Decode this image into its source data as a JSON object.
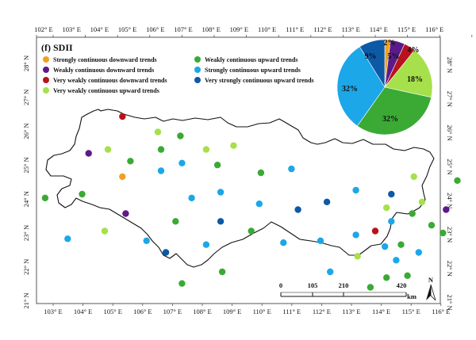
{
  "title": "(f) SDII",
  "top_ticks": [
    "102° E",
    "103° E",
    "104° E",
    "105° E",
    "106° E",
    "107° E",
    "108° E",
    "109° E",
    "110° E",
    "111° E",
    "112° E",
    "113° E",
    "114° E",
    "115° E",
    "116° E"
  ],
  "bottom_ticks": [
    "103° E",
    "104° E",
    "105° E",
    "106° E",
    "107° E",
    "108° E",
    "109° E",
    "110° E",
    "111° E",
    "112° E",
    "113° E",
    "114° E",
    "115° E",
    "116° E"
  ],
  "left_ticks": [
    "28° N",
    "27° N",
    "26° N",
    "25° N",
    "24° N",
    "23° N",
    "22° N",
    "21° N"
  ],
  "right_ticks": [
    "28° N",
    "27° N",
    "26° N",
    "25° N",
    "24° N",
    "23° N",
    "22° N",
    "21° N"
  ],
  "legend": [
    {
      "label": "Strongly continuous downward trends",
      "color": "#f0a020"
    },
    {
      "label": "Weakly continuous downward trends",
      "color": "#5b1a8c"
    },
    {
      "label": "Very weakly continuous downward trends",
      "color": "#b8121c"
    },
    {
      "label": "Very weakly continuous upward trends",
      "color": "#a6e04a"
    },
    {
      "label": "Weakly continuous upward trends",
      "color": "#3aaa35"
    },
    {
      "label": "Strongly continuous upward trends",
      "color": "#1ba7e8"
    },
    {
      "label": "Very strongly continuous upward trends",
      "color": "#0c5aa6"
    }
  ],
  "pie": [
    {
      "label": "2%",
      "value": 2,
      "color": "#f0a020"
    },
    {
      "label": "5%",
      "value": 5,
      "color": "#5b1a8c"
    },
    {
      "label": "4%",
      "value": 4,
      "color": "#b8121c"
    },
    {
      "label": "18%",
      "value": 18,
      "color": "#a6e04a"
    },
    {
      "label": "32%",
      "value": 32,
      "color": "#3aaa35"
    },
    {
      "label": "32%",
      "value": 32,
      "color": "#1ba7e8"
    },
    {
      "label": "9%",
      "value": 9,
      "color": "#0c5aa6"
    }
  ],
  "scale_bar": {
    "ticks": [
      "0",
      "105",
      "210",
      "420"
    ],
    "unit": "km"
  },
  "north_label": "N",
  "stations": [
    {
      "lon": 102.75,
      "lat": 24.35,
      "cat": 4
    },
    {
      "lon": 103.45,
      "lat": 23.3,
      "cat": 5
    },
    {
      "lon": 103.9,
      "lat": 24.45,
      "cat": 4
    },
    {
      "lon": 104.1,
      "lat": 25.5,
      "cat": 1
    },
    {
      "lon": 104.6,
      "lat": 23.5,
      "cat": 3
    },
    {
      "lon": 104.7,
      "lat": 25.6,
      "cat": 3
    },
    {
      "lon": 105.15,
      "lat": 26.45,
      "cat": 2
    },
    {
      "lon": 105.15,
      "lat": 24.9,
      "cat": 0
    },
    {
      "lon": 105.25,
      "lat": 23.95,
      "cat": 1
    },
    {
      "lon": 105.4,
      "lat": 25.3,
      "cat": 4
    },
    {
      "lon": 105.9,
      "lat": 23.25,
      "cat": 5
    },
    {
      "lon": 106.25,
      "lat": 26.05,
      "cat": 3
    },
    {
      "lon": 106.35,
      "lat": 25.6,
      "cat": 4
    },
    {
      "lon": 106.35,
      "lat": 25.05,
      "cat": 5
    },
    {
      "lon": 106.5,
      "lat": 22.95,
      "cat": 6
    },
    {
      "lon": 106.8,
      "lat": 23.75,
      "cat": 4
    },
    {
      "lon": 106.95,
      "lat": 25.95,
      "cat": 4
    },
    {
      "lon": 107.0,
      "lat": 25.25,
      "cat": 5
    },
    {
      "lon": 107.0,
      "lat": 22.15,
      "cat": 4
    },
    {
      "lon": 107.3,
      "lat": 24.35,
      "cat": 5
    },
    {
      "lon": 107.75,
      "lat": 25.6,
      "cat": 3
    },
    {
      "lon": 107.75,
      "lat": 23.15,
      "cat": 5
    },
    {
      "lon": 108.1,
      "lat": 25.2,
      "cat": 4
    },
    {
      "lon": 108.2,
      "lat": 24.5,
      "cat": 5
    },
    {
      "lon": 108.2,
      "lat": 23.75,
      "cat": 6
    },
    {
      "lon": 108.25,
      "lat": 22.45,
      "cat": 4
    },
    {
      "lon": 108.6,
      "lat": 25.7,
      "cat": 3
    },
    {
      "lon": 109.15,
      "lat": 23.5,
      "cat": 4
    },
    {
      "lon": 109.4,
      "lat": 24.2,
      "cat": 5
    },
    {
      "lon": 109.45,
      "lat": 25.0,
      "cat": 4
    },
    {
      "lon": 110.15,
      "lat": 23.2,
      "cat": 5
    },
    {
      "lon": 110.4,
      "lat": 25.1,
      "cat": 5
    },
    {
      "lon": 110.6,
      "lat": 24.05,
      "cat": 6
    },
    {
      "lon": 111.3,
      "lat": 23.25,
      "cat": 5
    },
    {
      "lon": 111.5,
      "lat": 24.25,
      "cat": 6
    },
    {
      "lon": 111.6,
      "lat": 22.45,
      "cat": 5
    },
    {
      "lon": 112.4,
      "lat": 24.55,
      "cat": 5
    },
    {
      "lon": 112.4,
      "lat": 23.4,
      "cat": 5
    },
    {
      "lon": 112.45,
      "lat": 22.85,
      "cat": 3
    },
    {
      "lon": 112.85,
      "lat": 22.05,
      "cat": 4
    },
    {
      "lon": 113.0,
      "lat": 23.5,
      "cat": 2
    },
    {
      "lon": 113.3,
      "lat": 23.1,
      "cat": 5
    },
    {
      "lon": 113.35,
      "lat": 24.1,
      "cat": 3
    },
    {
      "lon": 113.35,
      "lat": 22.3,
      "cat": 4
    },
    {
      "lon": 113.5,
      "lat": 24.45,
      "cat": 6
    },
    {
      "lon": 113.5,
      "lat": 23.75,
      "cat": 5
    },
    {
      "lon": 113.65,
      "lat": 22.75,
      "cat": 5
    },
    {
      "lon": 113.8,
      "lat": 23.15,
      "cat": 4
    },
    {
      "lon": 114.0,
      "lat": 22.35,
      "cat": 4
    },
    {
      "lon": 114.2,
      "lat": 24.9,
      "cat": 3
    },
    {
      "lon": 114.15,
      "lat": 23.95,
      "cat": 4
    },
    {
      "lon": 114.35,
      "lat": 22.95,
      "cat": 5
    },
    {
      "lon": 114.45,
      "lat": 24.25,
      "cat": 3
    },
    {
      "lon": 114.75,
      "lat": 23.65,
      "cat": 4
    },
    {
      "lon": 115.1,
      "lat": 23.45,
      "cat": 4
    },
    {
      "lon": 115.2,
      "lat": 24.05,
      "cat": 1
    },
    {
      "lon": 115.55,
      "lat": 24.8,
      "cat": 4
    }
  ]
}
